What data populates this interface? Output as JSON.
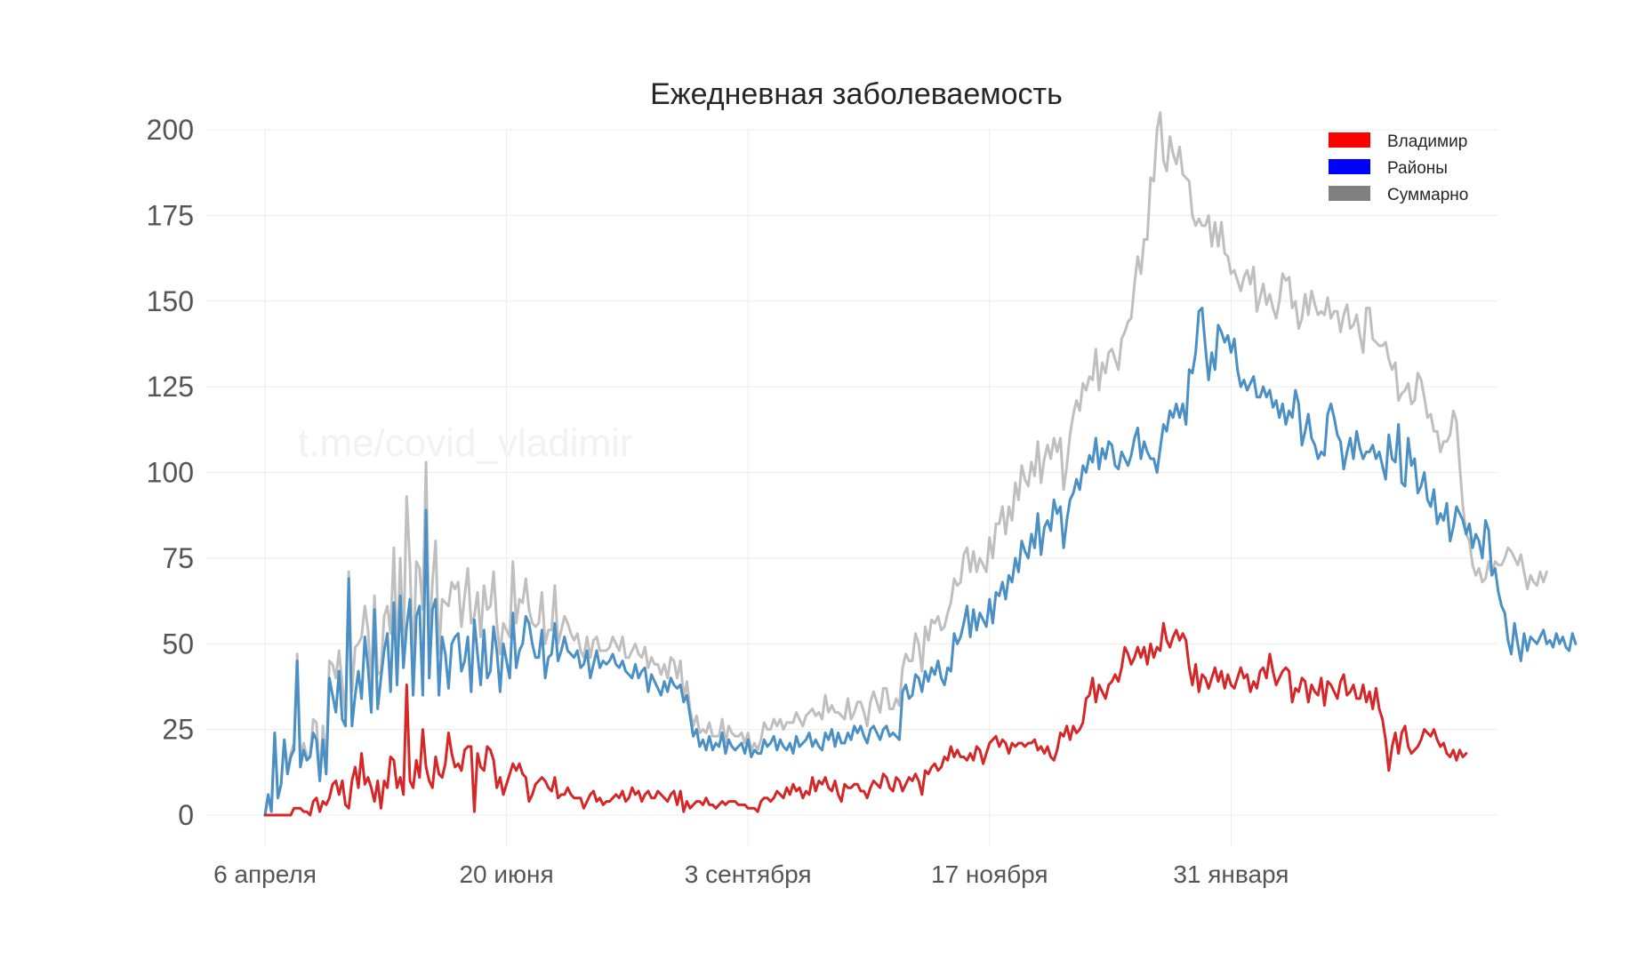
{
  "chart_data": {
    "type": "line",
    "title": "Ежедневная заболеваемость",
    "watermark": "t.me/covid_vladimir",
    "xlabel": "",
    "ylabel": "",
    "ylim": [
      -7,
      200
    ],
    "yticks": [
      0,
      25,
      50,
      75,
      100,
      125,
      150,
      175,
      200
    ],
    "xtick_labels": [
      "6 апреля",
      "20 июня",
      "3 сентября",
      "17 ноября",
      "31 января"
    ],
    "grid": true,
    "legend_position": "top-right",
    "series": [
      {
        "name": "Владимир",
        "color": "#d62728",
        "legend_color": "#ff0000",
        "values": [
          0,
          0,
          0,
          0,
          0,
          0,
          0,
          0,
          0,
          2,
          2,
          2,
          1,
          1,
          0,
          4,
          5,
          1,
          4,
          3,
          5,
          9,
          10,
          6,
          10,
          3,
          2,
          10,
          14,
          8,
          18,
          9,
          11,
          8,
          4,
          10,
          2,
          10,
          8,
          17,
          16,
          8,
          11,
          6,
          38,
          10,
          8,
          16,
          11,
          25,
          14,
          10,
          8,
          17,
          12,
          11,
          15,
          24,
          18,
          14,
          15,
          13,
          19,
          20,
          20,
          1,
          18,
          14,
          13,
          20,
          19,
          16,
          8,
          11,
          6,
          9,
          12,
          15,
          13,
          15,
          12,
          11,
          4,
          6,
          9,
          10,
          11,
          10,
          8,
          7,
          11,
          5,
          6,
          6,
          8,
          6,
          5,
          5,
          5,
          2,
          4,
          6,
          7,
          4,
          5,
          3,
          4,
          4,
          5,
          6,
          5,
          7,
          4,
          5,
          8,
          6,
          7,
          4,
          6,
          7,
          5,
          5,
          7,
          6,
          5,
          4,
          6,
          7,
          3,
          7,
          1,
          4,
          2,
          3,
          4,
          4,
          3,
          5,
          3,
          3,
          2,
          3,
          4,
          3,
          4,
          4,
          4,
          3,
          3,
          3,
          2,
          2,
          2,
          1,
          4,
          5,
          5,
          4,
          5,
          7,
          6,
          5,
          8,
          6,
          9,
          7,
          8,
          5,
          7,
          6,
          11,
          7,
          10,
          9,
          11,
          8,
          7,
          10,
          6,
          4,
          9,
          8,
          8,
          9,
          9,
          7,
          7,
          5,
          8,
          10,
          9,
          8,
          12,
          11,
          8,
          7,
          11,
          10,
          7,
          9,
          11,
          10,
          12,
          10,
          6,
          13,
          12,
          14,
          15,
          13,
          14,
          17,
          16,
          20,
          17,
          19,
          17,
          17,
          16,
          18,
          16,
          20,
          19,
          15,
          18,
          21,
          22,
          23,
          20,
          22,
          21,
          18,
          21,
          20,
          21,
          21,
          20,
          21,
          21,
          22,
          19,
          20,
          18,
          20,
          17,
          16,
          19,
          24,
          23,
          26,
          22,
          26,
          24,
          25,
          27,
          34,
          35,
          40,
          33,
          38,
          36,
          34,
          38,
          39,
          41,
          39,
          43,
          49,
          47,
          44,
          46,
          49,
          46,
          49,
          44,
          50,
          46,
          49,
          48,
          56,
          51,
          49,
          52,
          54,
          51,
          53,
          51,
          43,
          38,
          44,
          36,
          41,
          40,
          37,
          40,
          43,
          39,
          42,
          37,
          41,
          38,
          37,
          40,
          43,
          40,
          41,
          36,
          39,
          37,
          42,
          43,
          40,
          47,
          42,
          38,
          40,
          42,
          43,
          42,
          33,
          37,
          36,
          40,
          39,
          33,
          38,
          36,
          35,
          40,
          32,
          39,
          38,
          36,
          34,
          39,
          41,
          35,
          36,
          38,
          34,
          34,
          38,
          33,
          36,
          31,
          37,
          31,
          28,
          22,
          13,
          20,
          24,
          18,
          24,
          26,
          20,
          18,
          19,
          20,
          22,
          25,
          24,
          23,
          25,
          22,
          20,
          21,
          18,
          17,
          19,
          16,
          19,
          17,
          18
        ]
      },
      {
        "name": "Районы",
        "color": "#4a90c4",
        "legend_color": "#0000ff",
        "values": [
          0,
          6,
          1,
          24,
          5,
          9,
          22,
          12,
          17,
          19,
          45,
          14,
          19,
          16,
          17,
          24,
          22,
          10,
          22,
          12,
          40,
          35,
          30,
          42,
          28,
          26,
          69,
          26,
          35,
          42,
          34,
          52,
          43,
          30,
          60,
          31,
          40,
          48,
          53,
          36,
          62,
          38,
          64,
          43,
          55,
          63,
          35,
          58,
          61,
          35,
          89,
          40,
          60,
          63,
          35,
          52,
          47,
          37,
          50,
          52,
          53,
          42,
          45,
          52,
          36,
          57,
          47,
          38,
          54,
          40,
          42,
          55,
          48,
          36,
          50,
          45,
          40,
          59,
          43,
          48,
          50,
          58,
          56,
          50,
          46,
          46,
          54,
          40,
          46,
          47,
          56,
          45,
          48,
          52,
          48,
          47,
          46,
          48,
          43,
          44,
          48,
          40,
          44,
          48,
          43,
          45,
          44,
          45,
          47,
          44,
          43,
          45,
          42,
          41,
          40,
          44,
          40,
          42,
          43,
          36,
          41,
          39,
          37,
          35,
          39,
          36,
          40,
          38,
          37,
          38,
          33,
          35,
          29,
          23,
          25,
          20,
          22,
          19,
          23,
          19,
          21,
          20,
          24,
          18,
          22,
          20,
          19,
          20,
          21,
          18,
          22,
          17,
          19,
          18,
          18,
          22,
          20,
          21,
          23,
          19,
          22,
          20,
          19,
          21,
          18,
          23,
          20,
          21,
          22,
          24,
          20,
          22,
          20,
          19,
          24,
          22,
          25,
          20,
          24,
          21,
          21,
          24,
          22,
          26,
          24,
          26,
          23,
          21,
          25,
          26,
          24,
          22,
          25,
          26,
          23,
          24,
          23,
          22,
          36,
          38,
          34,
          35,
          41,
          40,
          36,
          42,
          39,
          43,
          41,
          45,
          40,
          38,
          43,
          42,
          53,
          50,
          52,
          56,
          61,
          52,
          60,
          54,
          59,
          57,
          55,
          63,
          56,
          65,
          64,
          68,
          63,
          70,
          68,
          75,
          71,
          80,
          77,
          75,
          82,
          78,
          88,
          76,
          84,
          86,
          83,
          92,
          88,
          90,
          78,
          86,
          92,
          94,
          98,
          95,
          102,
          100,
          105,
          103,
          110,
          101,
          107,
          104,
          109,
          108,
          102,
          101,
          106,
          104,
          102,
          105,
          110,
          113,
          104,
          109,
          106,
          104,
          104,
          100,
          107,
          114,
          112,
          118,
          116,
          120,
          116,
          120,
          114,
          130,
          129,
          135,
          147,
          148,
          137,
          127,
          135,
          130,
          143,
          141,
          138,
          140,
          135,
          139,
          130,
          125,
          127,
          124,
          126,
          128,
          122,
          122,
          125,
          122,
          124,
          119,
          121,
          116,
          120,
          114,
          118,
          116,
          124,
          120,
          108,
          112,
          117,
          110,
          108,
          104,
          106,
          105,
          117,
          120,
          116,
          111,
          109,
          101,
          106,
          110,
          104,
          112,
          107,
          104,
          106,
          106,
          108,
          104,
          106,
          102,
          98,
          111,
          104,
          103,
          114,
          97,
          96,
          110,
          102,
          104,
          94,
          96,
          100,
          92,
          90,
          95,
          85,
          88,
          86,
          91,
          80,
          84,
          90,
          88,
          86,
          82,
          85,
          78,
          82,
          80,
          75,
          86,
          83,
          70,
          72,
          65,
          61,
          59,
          51,
          47,
          56,
          50,
          45,
          53,
          48,
          52,
          51,
          50,
          52,
          54,
          50,
          51,
          49,
          53,
          50,
          52,
          49,
          48,
          53,
          50
        ]
      },
      {
        "name": "Суммарно",
        "color": "#bfbfbf",
        "legend_color": "#808080",
        "values": [
          0,
          6,
          1,
          24,
          5,
          9,
          22,
          13,
          18,
          21,
          47,
          16,
          21,
          17,
          17,
          28,
          27,
          11,
          26,
          15,
          45,
          44,
          40,
          48,
          38,
          29,
          71,
          36,
          49,
          50,
          52,
          61,
          54,
          38,
          64,
          41,
          42,
          58,
          61,
          53,
          78,
          46,
          75,
          49,
          93,
          73,
          43,
          74,
          72,
          60,
          103,
          50,
          68,
          80,
          47,
          63,
          62,
          61,
          68,
          66,
          68,
          55,
          64,
          72,
          56,
          58,
          65,
          52,
          67,
          60,
          61,
          71,
          56,
          47,
          56,
          54,
          52,
          74,
          56,
          63,
          62,
          69,
          60,
          56,
          55,
          56,
          65,
          50,
          54,
          54,
          67,
          50,
          54,
          58,
          56,
          53,
          51,
          53,
          48,
          46,
          52,
          46,
          51,
          52,
          48,
          48,
          48,
          49,
          52,
          50,
          48,
          52,
          46,
          46,
          48,
          50,
          47,
          46,
          49,
          43,
          46,
          44,
          44,
          41,
          44,
          40,
          46,
          45,
          40,
          45,
          34,
          39,
          31,
          26,
          29,
          24,
          25,
          24,
          27,
          23,
          23,
          23,
          28,
          21,
          26,
          24,
          23,
          23,
          24,
          21,
          24,
          19,
          21,
          19,
          22,
          27,
          25,
          25,
          28,
          26,
          28,
          25,
          27,
          27,
          27,
          30,
          28,
          26,
          29,
          30,
          31,
          29,
          30,
          28,
          35,
          30,
          32,
          30,
          30,
          29,
          28,
          34,
          28,
          30,
          33,
          33,
          30,
          26,
          33,
          36,
          33,
          30,
          37,
          37,
          31,
          31,
          34,
          32,
          43,
          47,
          45,
          45,
          53,
          50,
          42,
          55,
          51,
          57,
          56,
          58,
          54,
          55,
          59,
          62,
          69,
          67,
          68,
          76,
          78,
          71,
          77,
          71,
          75,
          73,
          71,
          81,
          75,
          85,
          85,
          90,
          82,
          90,
          86,
          97,
          92,
          102,
          98,
          96,
          103,
          99,
          109,
          97,
          104,
          108,
          104,
          110,
          106,
          110,
          95,
          102,
          111,
          117,
          121,
          118,
          126,
          124,
          128,
          127,
          136,
          124,
          132,
          129,
          135,
          136,
          133,
          130,
          139,
          141,
          144,
          145,
          155,
          163,
          158,
          168,
          168,
          186,
          185,
          200,
          205,
          191,
          188,
          198,
          193,
          190,
          195,
          187,
          186,
          185,
          175,
          172,
          174,
          172,
          172,
          175,
          166,
          173,
          166,
          173,
          164,
          163,
          158,
          159,
          156,
          153,
          157,
          159,
          155,
          160,
          147,
          151,
          155,
          149,
          152,
          148,
          145,
          150,
          158,
          156,
          157,
          148,
          150,
          142,
          145,
          152,
          146,
          153,
          149,
          146,
          147,
          146,
          151,
          145,
          147,
          147,
          141,
          146,
          149,
          142,
          143,
          146,
          140,
          135,
          148,
          148,
          139,
          138,
          137,
          137,
          138,
          133,
          130,
          132,
          121,
          123,
          124,
          126,
          120,
          121,
          129,
          127,
          122,
          116,
          117,
          112,
          112,
          106,
          109,
          109,
          111,
          118,
          115,
          102,
          90,
          82,
          80,
          73,
          70,
          72,
          68,
          69,
          74,
          70,
          74,
          73,
          73,
          75,
          78,
          77,
          75,
          73,
          76,
          71,
          66,
          70,
          68,
          67,
          71,
          68,
          71
        ]
      }
    ]
  }
}
